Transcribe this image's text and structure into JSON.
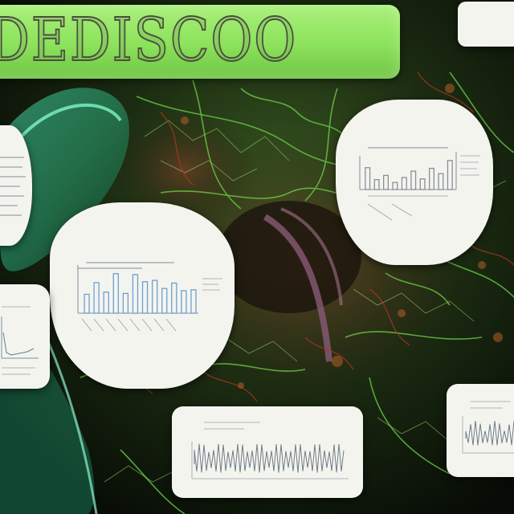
{
  "banner": {
    "title": "DEDISCOO"
  },
  "colors": {
    "background": "#0b120a",
    "vein_green": "#6fd24a",
    "vein_red": "#b4361f",
    "banner_green": "#8ce25b",
    "card_paper": "#f4f4ef",
    "bar_blue": "#6d9fd0",
    "ink_gray": "#8a8f96"
  },
  "cards": [
    {
      "name": "card-top-right-corner",
      "content": "blank"
    },
    {
      "name": "card-left-edge",
      "content": "text-lines"
    },
    {
      "name": "card-center-left-chart",
      "content": "bar-chart",
      "bar_levels": [
        0.42,
        0.68,
        0.47,
        0.88,
        0.44,
        0.86,
        0.7,
        0.73,
        0.55,
        0.67,
        0.5,
        0.52
      ]
    },
    {
      "name": "card-upper-right-chart",
      "content": "bar-chart",
      "bar_levels": [
        0.62,
        0.28,
        0.4,
        0.2,
        0.34,
        0.52,
        0.3,
        0.6,
        0.45,
        0.82
      ]
    },
    {
      "name": "card-left-bottom-chart",
      "content": "line-chart"
    },
    {
      "name": "card-bottom-center-chart",
      "content": "waveform-chart"
    },
    {
      "name": "card-bottom-right-chart",
      "content": "waveform-chart"
    }
  ]
}
